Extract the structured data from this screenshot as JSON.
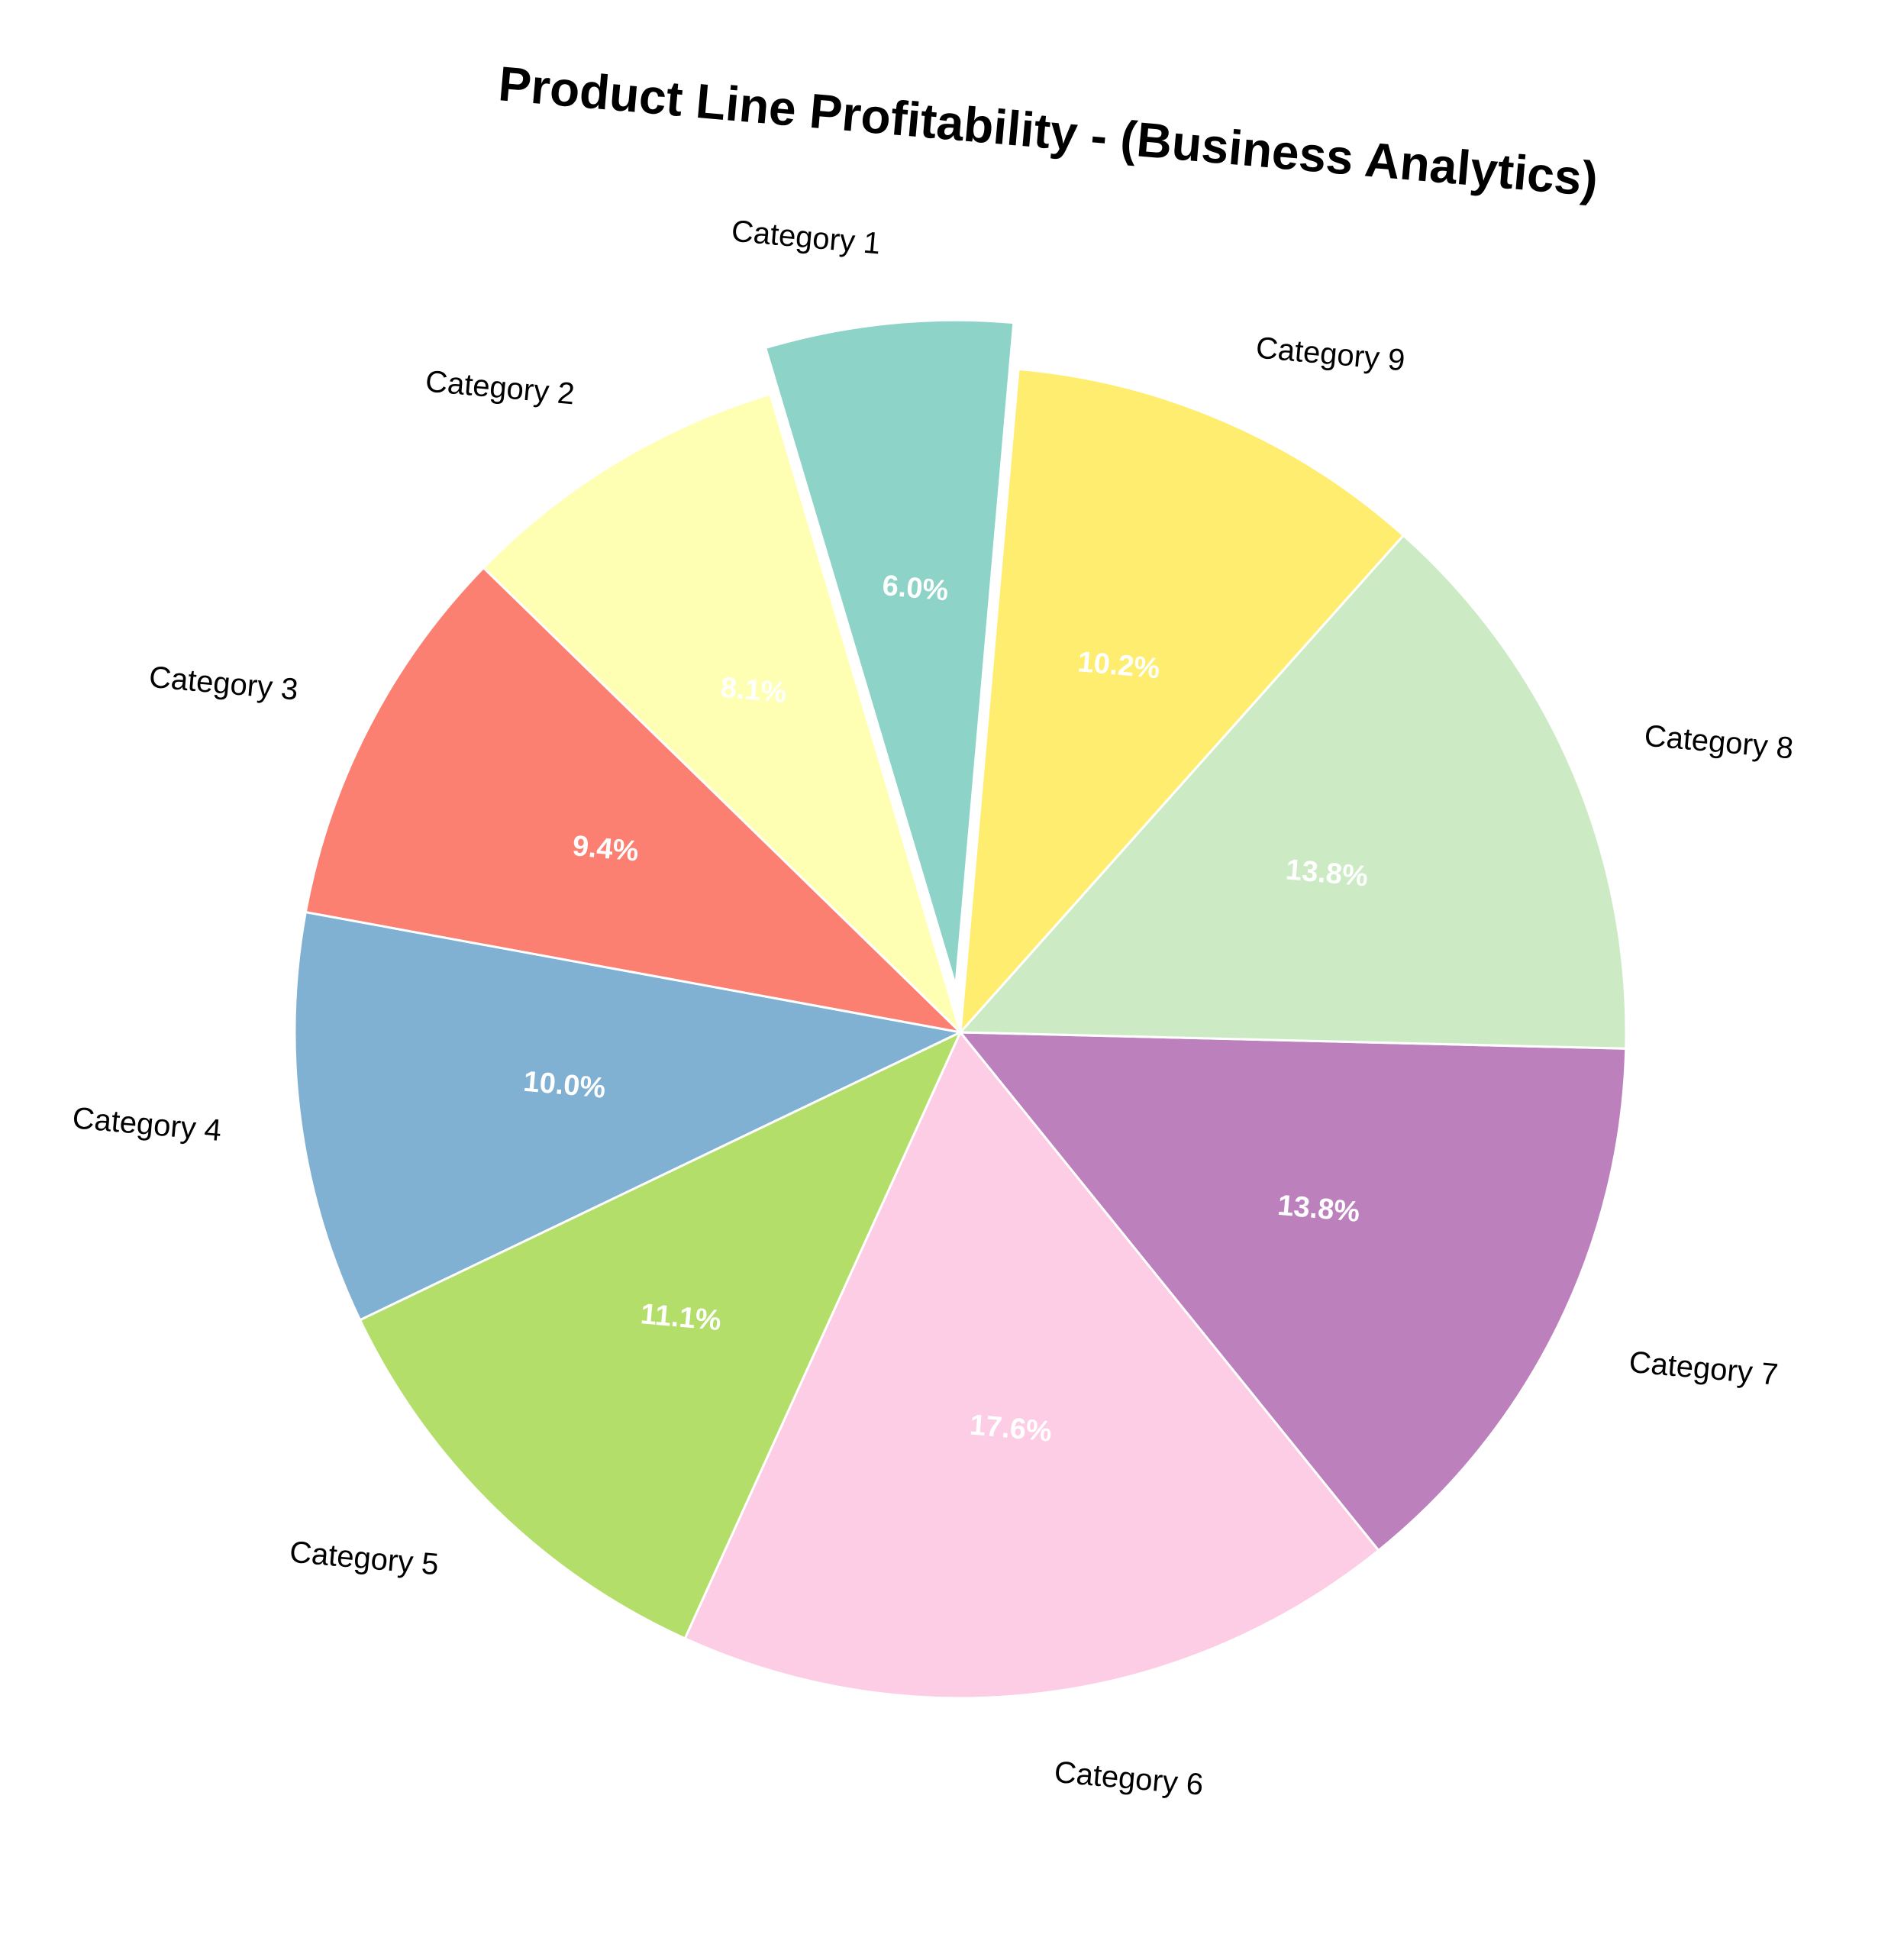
{
  "chart_data": {
    "type": "pie",
    "title": "Product Line Profitability - (Business Analytics)",
    "categories": [
      "Category 1",
      "Category 2",
      "Category 3",
      "Category 4",
      "Category 5",
      "Category 6",
      "Category 7",
      "Category 8",
      "Category 9"
    ],
    "values": [
      6.0,
      8.1,
      9.4,
      10.0,
      11.1,
      17.6,
      13.8,
      13.8,
      10.2
    ],
    "value_labels": [
      "6.0%",
      "8.1%",
      "9.4%",
      "10.0%",
      "11.1%",
      "17.6%",
      "13.8%",
      "13.8%",
      "10.2%"
    ],
    "colors": [
      "#8dd3c7",
      "#ffffb3",
      "#fb8072",
      "#80b1d3",
      "#b3de69",
      "#fccde5",
      "#bc80bd",
      "#ccebc5",
      "#ffed6f"
    ],
    "exploded": [
      "Category 1"
    ],
    "direction": "counterclockwise"
  }
}
